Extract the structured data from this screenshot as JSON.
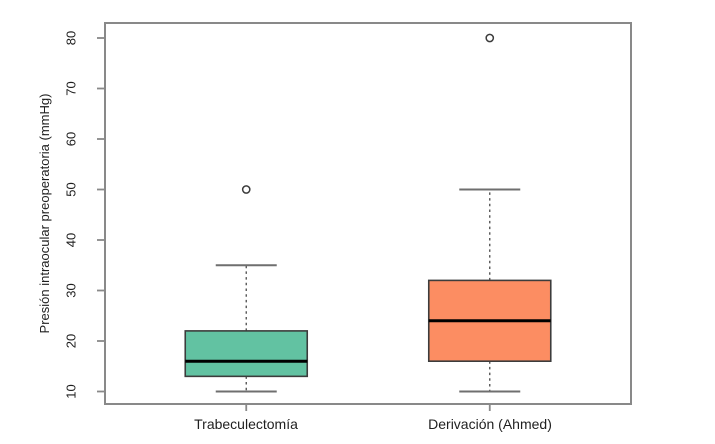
{
  "chart_data": {
    "type": "boxplot",
    "title": "",
    "xlabel": "",
    "ylabel": "Presión intraocular preoperatoria (mmHg)",
    "ylim": [
      10,
      80
    ],
    "yticks": [
      10,
      20,
      30,
      40,
      50,
      60,
      70,
      80
    ],
    "grid": false,
    "legend": "none",
    "categories": [
      "Trabeculectomía",
      "Derivación (Ahmed)"
    ],
    "series": [
      {
        "name": "Trabeculectomía",
        "whisker_low": 10,
        "q1": 13,
        "median": 16,
        "q3": 22,
        "whisker_high": 35,
        "outliers": [
          50
        ],
        "fill": "#62C2A2"
      },
      {
        "name": "Derivación (Ahmed)",
        "whisker_low": 10,
        "q1": 16,
        "median": 24,
        "q3": 32,
        "whisker_high": 50,
        "outliers": [
          80
        ],
        "fill": "#FC8D62"
      }
    ],
    "colors": {
      "frame": "#898989",
      "box_border": "#3c3c3c",
      "median": "#000000",
      "whisker": "#4a4a4a",
      "cap": "#6f6f6f",
      "outlier_stroke": "#3c3c3c",
      "text": "#1f1f1f",
      "background": "#ffffff"
    }
  }
}
